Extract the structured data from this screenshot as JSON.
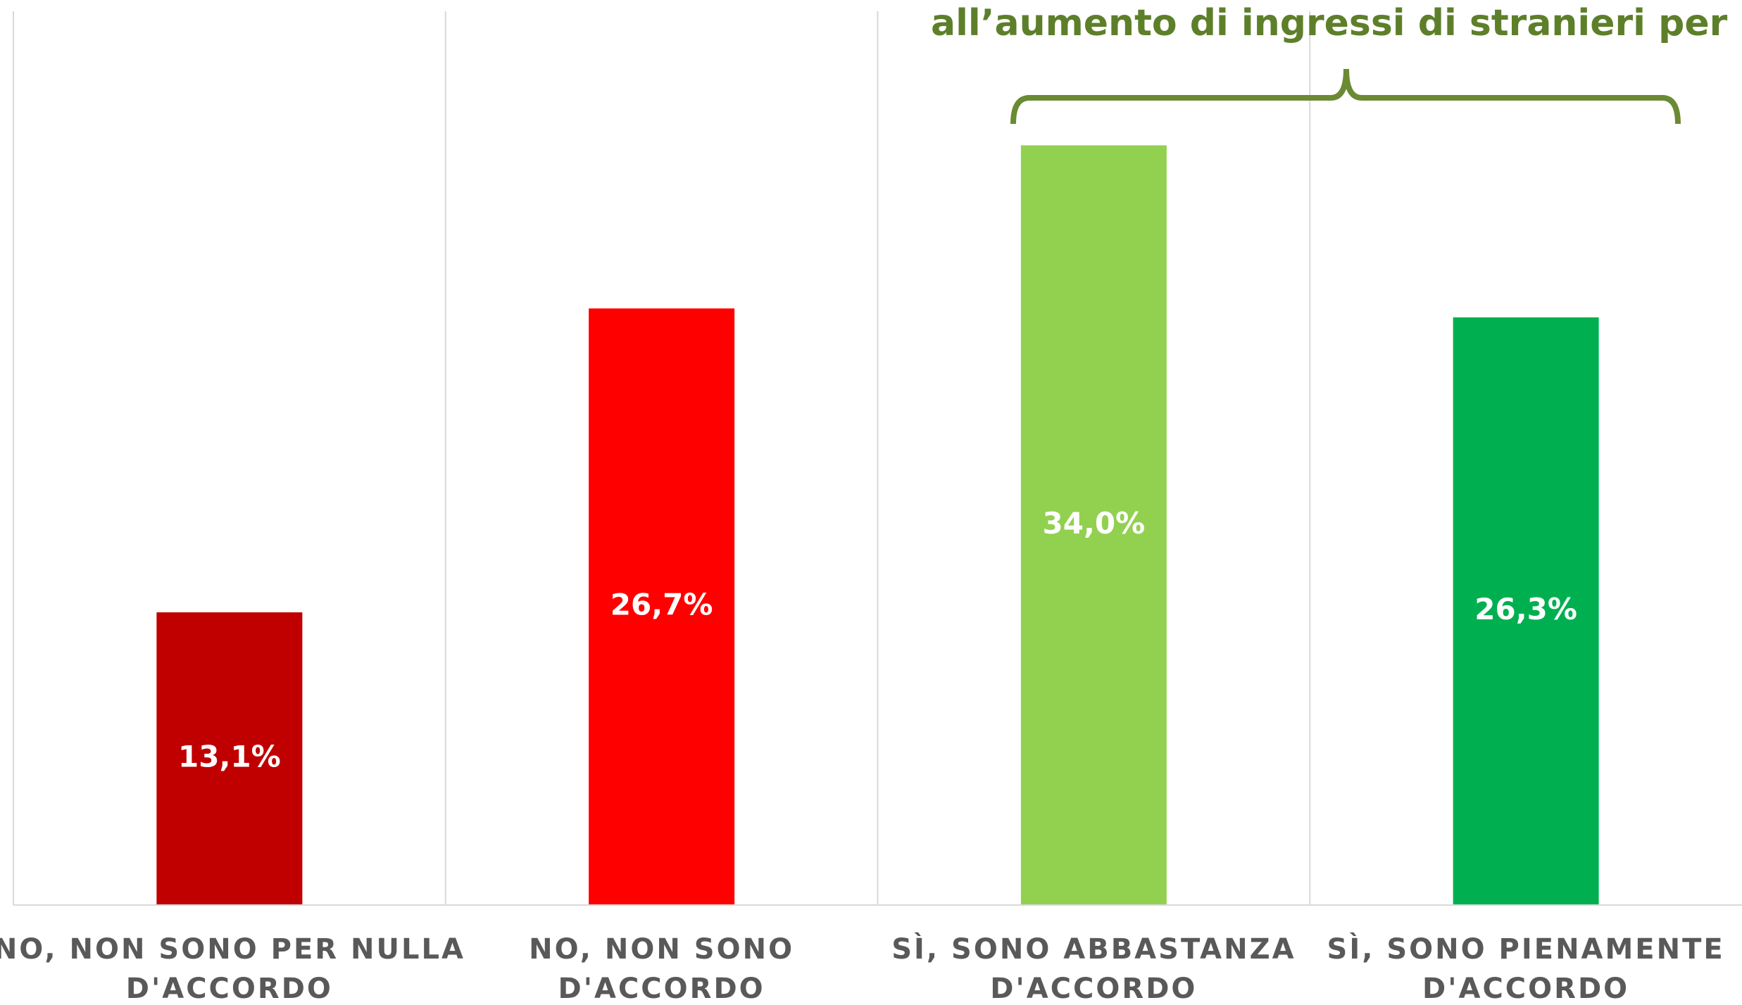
{
  "chart_data": {
    "type": "bar",
    "annotation": "all’aumento di ingressi di stranieri per lavoro",
    "categories": [
      [
        "NO, NON SONO PER NULLA",
        "D'ACCORDO"
      ],
      [
        "NO, NON SONO",
        "D'ACCORDO"
      ],
      [
        "SÌ, SONO ABBASTANZA",
        "D'ACCORDO"
      ],
      [
        "SÌ, SONO PIENAMENTE",
        "D'ACCORDO"
      ]
    ],
    "values": [
      13.1,
      26.7,
      34.0,
      26.3
    ],
    "value_labels": [
      "13,1%",
      "26,7%",
      "34,0%",
      "26,3%"
    ],
    "colors": [
      "#c00000",
      "#ff0000",
      "#92d050",
      "#00b050"
    ],
    "ylim": [
      0,
      40
    ]
  }
}
